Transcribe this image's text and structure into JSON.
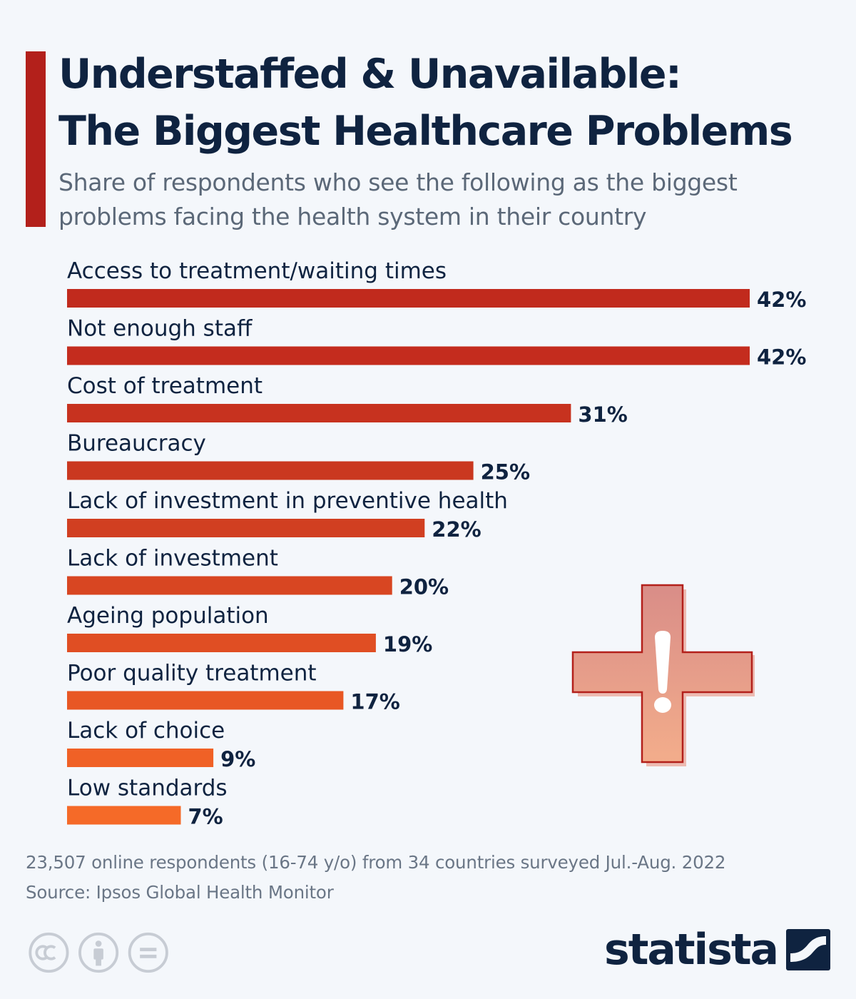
{
  "header": {
    "title_line1": "Understaffed & Unavailable:",
    "title_line2": "The Biggest Healthcare Problems",
    "subtitle": "Share of respondents who see the following as the biggest problems facing the health system in their country"
  },
  "chart_data": {
    "type": "bar",
    "orientation": "horizontal",
    "title": "Understaffed & Unavailable: The Biggest Healthcare Problems",
    "subtitle": "Share of respondents who see the following as the biggest problems facing the health system in their country",
    "categories": [
      "Access to treatment/waiting times",
      "Not enough staff",
      "Cost of treatment",
      "Bureaucracy",
      "Lack of investment in preventive health",
      "Lack of investment",
      "Ageing population",
      "Poor quality treatment",
      "Lack of choice",
      "Low standards"
    ],
    "values": [
      42,
      42,
      31,
      25,
      22,
      20,
      19,
      17,
      9,
      7
    ],
    "value_labels": [
      "42%",
      "42%",
      "31%",
      "25%",
      "22%",
      "20%",
      "19%",
      "17%",
      "9%",
      "7%"
    ],
    "unit": "%",
    "xlim": [
      0,
      42
    ],
    "grid": false,
    "legend": "none",
    "bar_colors": [
      "#c12a1d",
      "#c42c1e",
      "#c7321f",
      "#ca3820",
      "#d13f21",
      "#d84622",
      "#e04e23",
      "#e85724",
      "#f06126",
      "#f56a28"
    ]
  },
  "colors": {
    "accent": "#b3201b",
    "title": "#0f2340",
    "subtitle": "#5b6878",
    "background": "#f4f7fb"
  },
  "illustration": {
    "icon": "medical-cross-exclamation-icon"
  },
  "footer": {
    "note": "23,507 online respondents (16-74 y/o) from 34 countries surveyed Jul.-Aug. 2022",
    "source": "Source: Ipsos Global Health Monitor",
    "license_icons": [
      "creative-commons-icon",
      "attribution-icon",
      "no-derivatives-icon"
    ],
    "brand": "statista"
  }
}
